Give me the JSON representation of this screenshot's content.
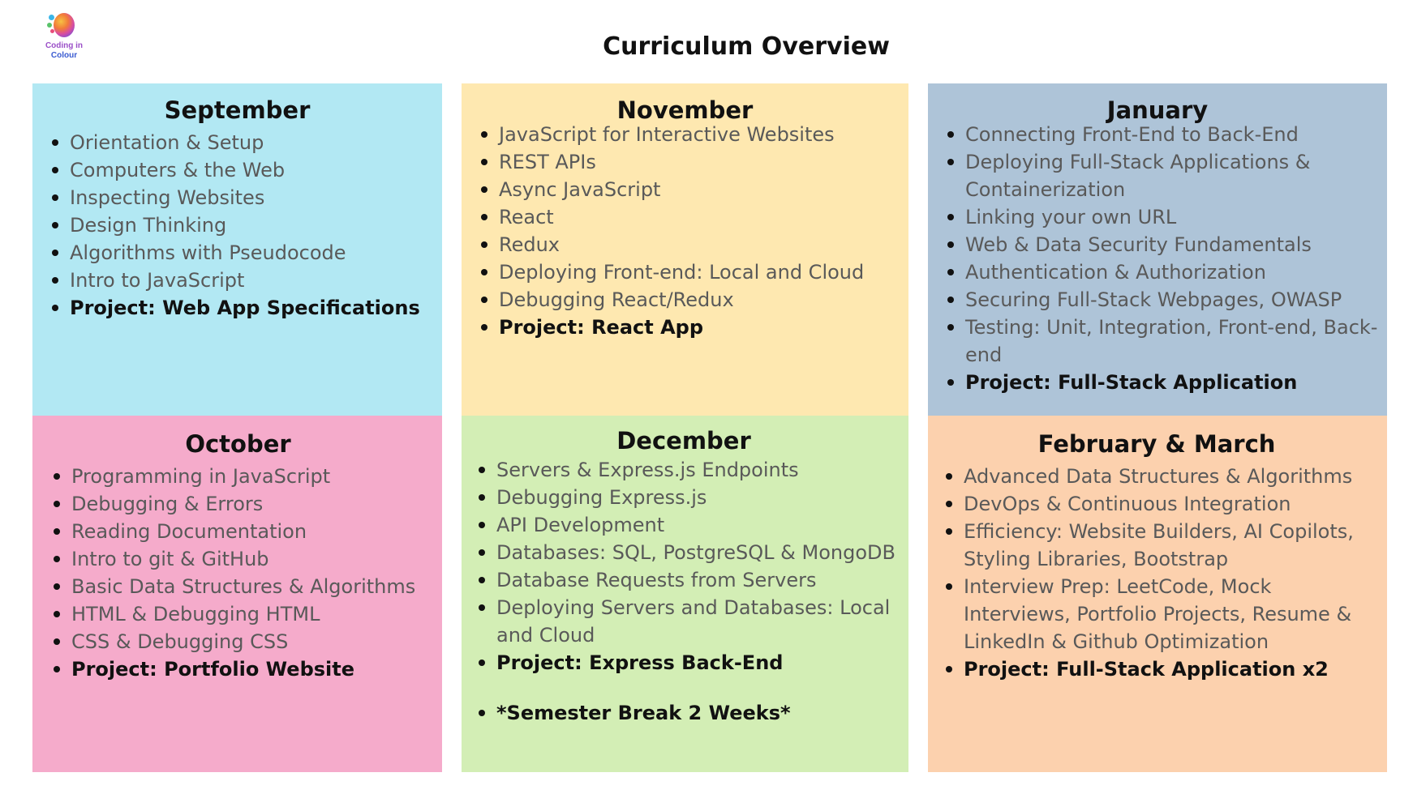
{
  "logo": {
    "line1": "Coding in",
    "line2": "Colour"
  },
  "title": "Curriculum Overview",
  "colors": {
    "september": "#b2e8f3",
    "october": "#f5abcb",
    "november": "#fee8b0",
    "december": "#d3eeb5",
    "january": "#aec4d8",
    "february_march": "#fcd1ae"
  },
  "september": {
    "heading": "September",
    "items": [
      "Orientation & Setup",
      "Computers & the Web",
      "Inspecting Websites",
      "Design Thinking",
      "Algorithms with Pseudocode",
      "Intro to JavaScript",
      "Project: Web App Specifications"
    ]
  },
  "october": {
    "heading": "October",
    "items": [
      "Programming in JavaScript",
      "Debugging & Errors",
      "Reading Documentation",
      "Intro to git & GitHub",
      "Basic Data Structures & Algorithms",
      "HTML & Debugging HTML",
      "CSS & Debugging CSS",
      "Project: Portfolio Website"
    ]
  },
  "november": {
    "heading": "November",
    "items": [
      "JavaScript for Interactive Websites",
      "REST APIs",
      "Async JavaScript",
      "React",
      "Redux",
      "Deploying Front-end: Local and Cloud",
      "Debugging React/Redux",
      "Project: React App"
    ]
  },
  "december": {
    "heading": "December",
    "items": [
      "Servers & Express.js Endpoints",
      "Debugging Express.js",
      "API Development",
      "Databases: SQL, PostgreSQL & MongoDB",
      "Database Requests from Servers",
      "Deploying Servers and Databases: Local and Cloud",
      "Project: Express Back-End",
      "*Semester Break 2 Weeks*"
    ]
  },
  "january": {
    "heading": "January",
    "items": [
      "Connecting Front-End to Back-End",
      "Deploying Full-Stack Applications & Containerization",
      "Linking your own URL",
      "Web & Data Security Fundamentals",
      "Authentication & Authorization",
      "Securing Full-Stack Webpages, OWASP",
      "Testing: Unit, Integration, Front-end, Back-end",
      "Project: Full-Stack Application"
    ]
  },
  "february_march": {
    "heading": "February & March",
    "items": [
      "Advanced Data Structures & Algorithms",
      "DevOps & Continuous Integration",
      "Efficiency: Website Builders, AI Copilots, Styling Libraries, Bootstrap",
      "Interview Prep: LeetCode, Mock Interviews, Portfolio Projects, Resume & LinkedIn & Github Optimization",
      "Project: Full-Stack Application x2"
    ]
  }
}
